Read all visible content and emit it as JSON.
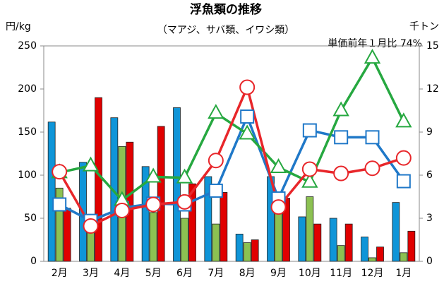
{
  "chart_data": {
    "type": "bar-line",
    "title": "浮魚類の推移",
    "subtitle": "（マアジ、サバ類、イワシ類）",
    "y_label": "円/kg",
    "y2_label": "千トン",
    "annotation": "単価前年１月比 74%",
    "categories": [
      "2月",
      "3月",
      "4月",
      "5月",
      "6月",
      "7月",
      "8月",
      "9月",
      "10月",
      "11月",
      "12月",
      "1月"
    ],
    "ylim": [
      0,
      250
    ],
    "yticks": [
      0,
      50,
      100,
      150,
      200,
      250
    ],
    "y2lim": [
      0,
      15
    ],
    "y2ticks": [
      0,
      3,
      6,
      9,
      12,
      15
    ],
    "bar_series": [
      {
        "color": "#0f95d8",
        "axis": "y2",
        "values": [
          9.7,
          6.9,
          10.0,
          6.6,
          10.7,
          5.9,
          1.9,
          5.9,
          3.1,
          3.0,
          1.7,
          4.1
        ]
      },
      {
        "color": "#8cc152",
        "axis": "y2",
        "values": [
          5.1,
          2.0,
          8.0,
          3.4,
          3.0,
          2.6,
          1.3,
          3.4,
          4.5,
          1.1,
          0.25,
          0.6
        ]
      },
      {
        "color": "#e00000",
        "axis": "y2",
        "values": [
          3.7,
          11.4,
          8.3,
          9.4,
          5.4,
          4.8,
          1.5,
          4.4,
          2.6,
          2.6,
          1.0,
          2.1
        ]
      }
    ],
    "line_series": [
      {
        "color": "#1f78c8",
        "marker": "square",
        "axis": "y",
        "values": [
          66,
          47,
          62,
          67,
          66,
          82,
          168,
          73,
          152,
          144,
          144,
          93
        ]
      },
      {
        "color": "#26a840",
        "marker": "triangle",
        "axis": "y",
        "values": [
          103,
          111,
          71,
          98,
          97,
          172,
          148,
          109,
          92,
          175,
          236,
          162
        ]
      },
      {
        "color": "#e8262a",
        "marker": "circle",
        "axis": "y",
        "values": [
          104,
          41,
          59,
          66,
          69,
          117,
          202,
          63,
          107,
          102,
          108,
          120
        ]
      }
    ]
  }
}
